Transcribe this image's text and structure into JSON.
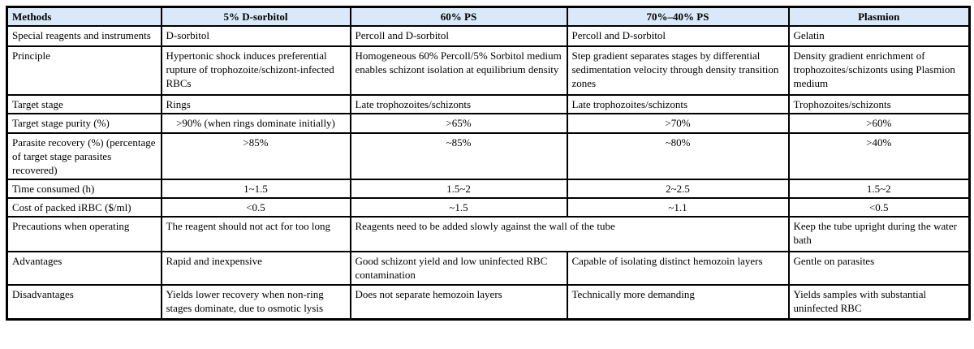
{
  "page": {
    "background": "#ffffff"
  },
  "table": {
    "header_bg": "#d9e9fa",
    "border_color": "#000000",
    "columns": [
      {
        "label": "Methods",
        "align": "left"
      },
      {
        "label": "5% D-sorbitol",
        "align": "center"
      },
      {
        "label": "60% PS",
        "align": "center"
      },
      {
        "label": "70%–40% PS",
        "align": "center"
      },
      {
        "label": "Plasmion",
        "align": "center"
      }
    ],
    "rows": [
      {
        "label": "Special reagents and instruments",
        "align": "left",
        "cells": [
          "D-sorbitol",
          "Percoll and D-sorbitol",
          "Percoll and D-sorbitol",
          "Gelatin"
        ]
      },
      {
        "label": "Principle",
        "align": "left",
        "cells": [
          "Hypertonic shock induces preferential rupture of trophozoite/schizont-infected RBCs",
          "Homogeneous 60% Percoll/5% Sorbitol medium enables schizont isolation at equilibrium density",
          "Step gradient separates stages by differential sedimentation velocity through density transition zones",
          "Density gradient enrichment of trophozoites/schizonts using Plasmion medium"
        ]
      },
      {
        "label": "Target stage",
        "align": "left",
        "cells": [
          "Rings",
          "Late trophozoites/schizonts",
          "Late trophozoites/schizonts",
          "Trophozoites/schizonts"
        ]
      },
      {
        "label": "Target stage purity (%)",
        "align": "center",
        "cells": [
          ">90% (when rings dominate initially)",
          ">65%",
          ">70%",
          ">60%"
        ]
      },
      {
        "label": "Parasite recovery (%) (percentage of target stage parasites recovered)",
        "align": "center",
        "cells": [
          ">85%",
          "~85%",
          "~80%",
          ">40%"
        ]
      },
      {
        "label": "Time consumed (h)",
        "align": "center",
        "cells": [
          "1~1.5",
          "1.5~2",
          "2~2.5",
          "1.5~2"
        ]
      },
      {
        "label": "Cost of packed iRBC ($/ml)",
        "align": "center",
        "cells": [
          "<0.5",
          "~1.5",
          "~1.1",
          "<0.5"
        ]
      },
      {
        "label": "Precautions when operating",
        "align": "left",
        "cells": [
          "The reagent should not act for too long",
          {
            "text": "Reagents need to be added slowly against the wall of the tube",
            "span": 2
          },
          "Keep the tube upright during the water bath"
        ]
      },
      {
        "label": "Advantages",
        "align": "left",
        "cells": [
          "Rapid and inexpensive",
          "Good schizont yield and low uninfected RBC contamination",
          "Capable of isolating distinct hemozoin layers",
          "Gentle on parasites"
        ]
      },
      {
        "label": "Disadvantages",
        "align": "left",
        "cells": [
          "Yields lower recovery when non-ring stages dominate, due to osmotic lysis",
          "Does not separate hemozoin layers",
          "Technically more demanding",
          "Yields samples with substantial uninfected RBC"
        ]
      }
    ]
  }
}
